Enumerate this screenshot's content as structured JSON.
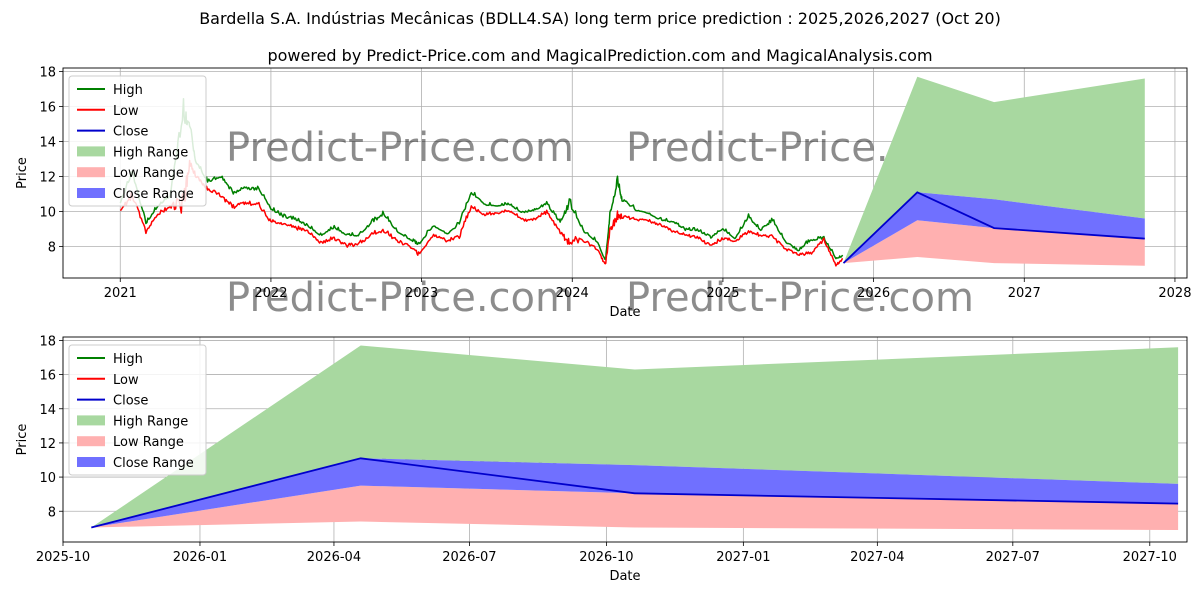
{
  "title": "Bardella S.A. Indústrias Mecânicas (BDLL4.SA) long term price prediction : 2025,2026,2027 (Oct 20)",
  "subtitle": "powered by Predict-Price.com and MagicalPrediction.com and MagicalAnalysis.com",
  "watermark": "Predict-Price.com",
  "colors": {
    "high": "#008000",
    "low": "#ff0000",
    "close": "#0000cc",
    "high_range": "#a8d8a0",
    "low_range": "#ffb0b0",
    "close_range": "#7070ff"
  },
  "chart_data": [
    {
      "type": "line",
      "panel": "top",
      "xlabel": "Date",
      "ylabel": "Price",
      "xlim": [
        2020.62,
        2028.08
      ],
      "ylim": [
        6.2,
        18.2
      ],
      "grid": true,
      "legend_placement": "upper-left",
      "legend": [
        "High",
        "Low",
        "Close",
        "High Range",
        "Low Range",
        "Close Range"
      ],
      "x_ticks": [
        {
          "v": 2021,
          "label": "2021"
        },
        {
          "v": 2022,
          "label": "2022"
        },
        {
          "v": 2023,
          "label": "2023"
        },
        {
          "v": 2024,
          "label": "2024"
        },
        {
          "v": 2025,
          "label": "2025"
        },
        {
          "v": 2026,
          "label": "2026"
        },
        {
          "v": 2027,
          "label": "2027"
        },
        {
          "v": 2028,
          "label": "2028"
        }
      ],
      "y_ticks": [
        8,
        10,
        12,
        14,
        16,
        18
      ],
      "history": {
        "x": [
          2021.0,
          2021.08,
          2021.17,
          2021.25,
          2021.33,
          2021.42,
          2021.46,
          2021.5,
          2021.58,
          2021.67,
          2021.75,
          2021.83,
          2021.92,
          2022.0,
          2022.08,
          2022.17,
          2022.25,
          2022.33,
          2022.42,
          2022.5,
          2022.58,
          2022.67,
          2022.75,
          2022.83,
          2022.92,
          2022.98,
          2023.08,
          2023.17,
          2023.25,
          2023.33,
          2023.42,
          2023.5,
          2023.58,
          2023.67,
          2023.75,
          2023.83,
          2023.92,
          2023.98,
          2024.08,
          2024.17,
          2024.22,
          2024.25,
          2024.3,
          2024.33,
          2024.42,
          2024.5,
          2024.58,
          2024.67,
          2024.75,
          2024.83,
          2024.92,
          2025.0,
          2025.08,
          2025.17,
          2025.25,
          2025.33,
          2025.42,
          2025.5,
          2025.58,
          2025.67,
          2025.75,
          2025.8
        ],
        "high": [
          10.6,
          12.5,
          9.4,
          10.4,
          11.0,
          16.5,
          15.2,
          13.0,
          11.8,
          12.1,
          11.2,
          11.5,
          11.4,
          10.3,
          9.8,
          9.6,
          9.2,
          8.7,
          9.2,
          8.8,
          8.7,
          9.5,
          10.0,
          9.0,
          8.5,
          8.2,
          9.3,
          8.8,
          9.4,
          11.2,
          10.5,
          10.4,
          10.5,
          10.0,
          10.2,
          10.5,
          9.5,
          10.8,
          8.9,
          8.3,
          7.2,
          9.9,
          12.0,
          10.8,
          10.2,
          10.0,
          9.6,
          9.5,
          9.0,
          9.0,
          8.6,
          9.1,
          8.5,
          9.8,
          9.0,
          9.6,
          8.3,
          7.8,
          8.5,
          8.5,
          7.4,
          7.5
        ],
        "low": [
          10.0,
          10.8,
          8.8,
          9.8,
          10.2,
          9.8,
          12.5,
          12.0,
          11.2,
          10.8,
          10.2,
          10.4,
          10.3,
          9.4,
          9.2,
          9.0,
          8.8,
          8.2,
          8.4,
          8.0,
          8.1,
          8.6,
          8.8,
          8.3,
          8.0,
          7.5,
          8.6,
          8.3,
          8.5,
          10.2,
          9.8,
          9.9,
          10.0,
          9.5,
          9.5,
          9.9,
          8.7,
          8.0,
          8.3,
          7.8,
          6.9,
          8.8,
          9.5,
          9.6,
          9.5,
          9.5,
          9.2,
          8.8,
          8.6,
          8.5,
          8.0,
          8.4,
          8.3,
          8.8,
          8.6,
          8.4,
          7.8,
          7.5,
          7.5,
          8.4,
          6.9,
          7.3
        ]
      },
      "forecast": {
        "x": [
          2025.8,
          2026.29,
          2026.8,
          2027.8
        ],
        "close": [
          7.05,
          11.1,
          9.05,
          8.45
        ],
        "high_range_top": [
          7.05,
          17.7,
          16.25,
          17.6
        ],
        "high_range_bottom": [
          7.05,
          11.1,
          10.7,
          9.6
        ],
        "close_range_top": [
          7.05,
          11.1,
          10.7,
          9.6
        ],
        "close_range_bottom": [
          7.05,
          9.5,
          9.05,
          8.45
        ],
        "low_range_top": [
          7.05,
          9.5,
          9.05,
          8.45
        ],
        "low_range_bottom": [
          7.05,
          7.4,
          7.05,
          6.9
        ]
      }
    },
    {
      "type": "line",
      "panel": "bottom",
      "xlabel": "Date",
      "ylabel": "Price",
      "xlim": [
        0,
        755
      ],
      "x_units": "days since 2025-10-01",
      "ylim": [
        6.2,
        18.2
      ],
      "grid": true,
      "legend_placement": "upper-left",
      "legend": [
        "High",
        "Low",
        "Close",
        "High Range",
        "Low Range",
        "Close Range"
      ],
      "x_ticks": [
        {
          "v": 0,
          "label": "2025-10"
        },
        {
          "v": 92,
          "label": "2026-01"
        },
        {
          "v": 182,
          "label": "2026-04"
        },
        {
          "v": 273,
          "label": "2026-07"
        },
        {
          "v": 365,
          "label": "2026-10"
        },
        {
          "v": 457,
          "label": "2027-01"
        },
        {
          "v": 547,
          "label": "2027-04"
        },
        {
          "v": 638,
          "label": "2027-07"
        },
        {
          "v": 730,
          "label": "2027-10"
        }
      ],
      "y_ticks": [
        8,
        10,
        12,
        14,
        16,
        18
      ],
      "forecast": {
        "x": [
          19,
          200,
          384,
          749
        ],
        "close": [
          7.05,
          11.1,
          9.05,
          8.45
        ],
        "high_range_top": [
          7.05,
          17.7,
          16.3,
          17.6
        ],
        "high_range_bottom": [
          7.05,
          11.1,
          10.7,
          9.6
        ],
        "close_range_top": [
          7.05,
          11.1,
          10.7,
          9.6
        ],
        "close_range_bottom": [
          7.05,
          9.5,
          9.05,
          8.45
        ],
        "low_range_top": [
          7.05,
          9.5,
          9.05,
          8.45
        ],
        "low_range_bottom": [
          7.05,
          7.4,
          7.05,
          6.9
        ]
      }
    }
  ]
}
